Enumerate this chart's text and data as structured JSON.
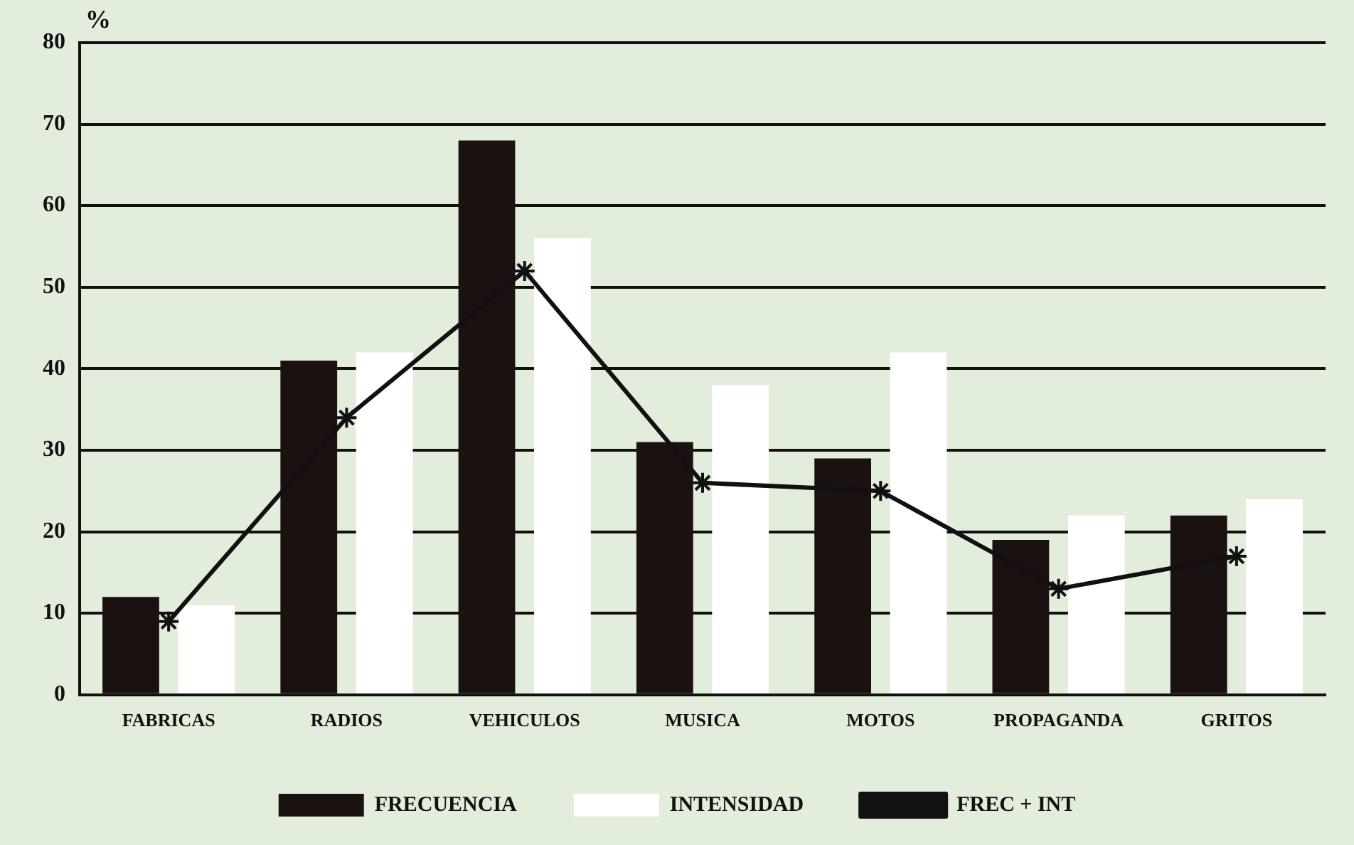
{
  "chart_data": {
    "type": "bar",
    "ylabel": "%",
    "categories": [
      "FABRICAS",
      "RADIOS",
      "VEHICULOS",
      "MUSICA",
      "MOTOS",
      "PROPAGANDA",
      "GRITOS"
    ],
    "series": [
      {
        "name": "FRECUENCIA",
        "color": "#1c1111",
        "values": [
          12,
          41,
          68,
          31,
          29,
          19,
          22
        ]
      },
      {
        "name": "INTENSIDAD",
        "color": "#ffffff",
        "values": [
          11,
          42,
          56,
          38,
          42,
          22,
          24
        ]
      },
      {
        "name": "FREC + INT",
        "type": "line",
        "color": "#111111",
        "marker": "cross",
        "values": [
          9,
          34,
          52,
          26,
          25,
          13,
          17
        ]
      }
    ],
    "ylim": [
      0,
      80
    ],
    "yticks": [
      0,
      10,
      20,
      30,
      40,
      50,
      60,
      70,
      80
    ],
    "grid": "y",
    "legend": "bottom"
  }
}
